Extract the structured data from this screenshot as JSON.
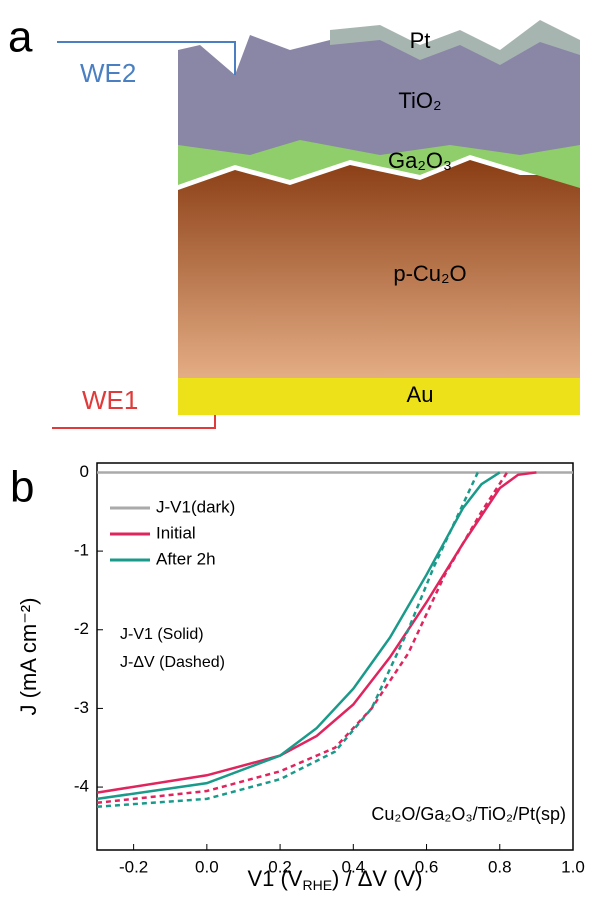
{
  "panels": {
    "a": {
      "letter": "a",
      "we2": "WE2",
      "we1": "WE1",
      "layers": [
        "Pt",
        "TiO₂",
        "Ga₂O₃",
        "p-Cu₂O",
        "Au"
      ]
    }
  },
  "chart_data": {
    "type": "line",
    "letter": "b",
    "xlabel": [
      "V1 (V",
      "RHE",
      ") / ΔV (V)"
    ],
    "ylabel": "J (mA cm⁻²)",
    "annotations": [
      "J-V1 (Solid)",
      "J-ΔV (Dashed)",
      "Cu₂O/Ga₂O₃/TiO₂/Pt(sp)"
    ],
    "xlim": [
      -0.3,
      1.0
    ],
    "ylim": [
      -4.8,
      0.12
    ],
    "xticks": [
      -0.2,
      {
        "value": 0,
        "label": "0.0"
      },
      0.2,
      0.4,
      0.6,
      0.8,
      {
        "value": 1,
        "label": "1.0"
      }
    ],
    "yticks": [
      0,
      -1,
      -2,
      -3,
      -4
    ],
    "legend": "upper left",
    "series": [
      {
        "name": "J-V1(dark)",
        "color": "#aaaaaa",
        "style": "solid",
        "x": [
          -0.3,
          1.0
        ],
        "values": [
          0,
          0
        ]
      },
      {
        "name": "Initial",
        "color": "#e0245e",
        "style": "solid",
        "x": [
          -0.3,
          0,
          0.2,
          0.3,
          0.4,
          0.5,
          0.6,
          0.7,
          0.8,
          0.85,
          0.9
        ],
        "values": [
          -4.07,
          -3.85,
          -3.6,
          -3.35,
          -2.95,
          -2.35,
          -1.65,
          -0.9,
          -0.2,
          -0.03,
          0
        ]
      },
      {
        "name": "After 2h",
        "color": "#1a9a8a",
        "style": "solid",
        "x": [
          -0.3,
          0,
          0.2,
          0.3,
          0.4,
          0.5,
          0.6,
          0.7,
          0.75,
          0.8
        ],
        "values": [
          -4.15,
          -3.95,
          -3.6,
          -3.25,
          -2.75,
          -2.1,
          -1.3,
          -0.45,
          -0.15,
          0
        ]
      },
      {
        "color": "#e0245e",
        "style": "dashed",
        "x": [
          -0.3,
          0,
          0.2,
          0.35,
          0.45,
          0.55,
          0.65,
          0.75,
          0.82
        ],
        "values": [
          -4.2,
          -4.05,
          -3.8,
          -3.5,
          -3.0,
          -2.3,
          -1.3,
          -0.5,
          0
        ]
      },
      {
        "color": "#1a9a8a",
        "style": "dashed",
        "x": [
          -0.3,
          0,
          0.2,
          0.35,
          0.45,
          0.55,
          0.62,
          0.7,
          0.74
        ],
        "values": [
          -4.25,
          -4.15,
          -3.9,
          -3.55,
          -3.0,
          -2.0,
          -1.2,
          -0.4,
          0
        ]
      }
    ]
  }
}
